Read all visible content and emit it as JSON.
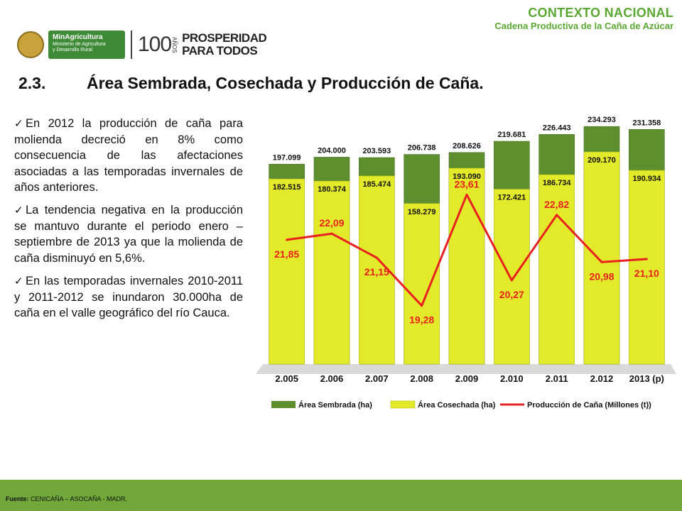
{
  "header": {
    "title": "CONTEXTO NACIONAL",
    "subtitle": "Cadena Productiva de la Caña de Azúcar"
  },
  "logos": {
    "minag_name": "MinAgricultura",
    "minag_line1": "Ministerio de Agricultura",
    "minag_line2": "y Desarrollo Rural",
    "cien": "100",
    "anos": "AÑOS",
    "prosperidad_line1": "PROSPERIDAD",
    "prosperidad_line2": "PARA TODOS"
  },
  "section": {
    "number": "2.3.",
    "title": "Área Sembrada, Cosechada y Producción de Caña."
  },
  "bullets": [
    "En 2012 la producción de caña para molienda decreció en 8% como consecuencia de las afectaciones asociadas a las temporadas invernales de años anteriores.",
    "La tendencia negativa en la producción se mantuvo durante el periodo enero – septiembre de 2013 ya que la molienda de caña disminuyó en 5,6%.",
    "En las temporadas invernales 2010-2011 y 2011-2012 se inundaron 30.000ha de caña en el valle geográfico del río Cauca."
  ],
  "footer": {
    "label": "Fuente:",
    "text": "CENICAÑA – ASOCAÑA - MADR."
  },
  "chart_data": {
    "type": "bar",
    "categories": [
      "2.005",
      "2.006",
      "2.007",
      "2.008",
      "2.009",
      "2.010",
      "2.011",
      "2.012",
      "2013 (p)"
    ],
    "series": [
      {
        "name": "Área Sembrada (ha)",
        "type": "bar",
        "values": [
          197099,
          204000,
          203593,
          206738,
          208626,
          219681,
          226443,
          234293,
          231358
        ],
        "labels": [
          "197.099",
          "204.000",
          "203.593",
          "206.738",
          "208.626",
          "219.681",
          "226.443",
          "234.293",
          "231.358"
        ],
        "color": "#5e8f2e"
      },
      {
        "name": "Área Cosechada (ha)",
        "type": "bar",
        "values": [
          182515,
          180374,
          185474,
          158279,
          193090,
          172421,
          186734,
          209170,
          190934
        ],
        "labels": [
          "182.515",
          "180.374",
          "185.474",
          "158.279",
          "193.090",
          "172.421",
          "186.734",
          "209.170",
          "190.934"
        ],
        "color": "#e2ea2a"
      },
      {
        "name": "Producción de Caña (Millones (t))",
        "type": "line",
        "values": [
          21.85,
          22.09,
          21.15,
          19.28,
          23.61,
          20.27,
          22.82,
          20.98,
          21.1
        ],
        "labels": [
          "21,85",
          "22,09",
          "21,15",
          "19,28",
          "23,61",
          "20,27",
          "22,82",
          "20,98",
          "21,10"
        ],
        "color": "#e82020"
      }
    ],
    "ylim": [
      0,
      240000
    ],
    "y2lim": [
      17,
      26.5
    ],
    "grid": false,
    "legend": "bottom"
  }
}
